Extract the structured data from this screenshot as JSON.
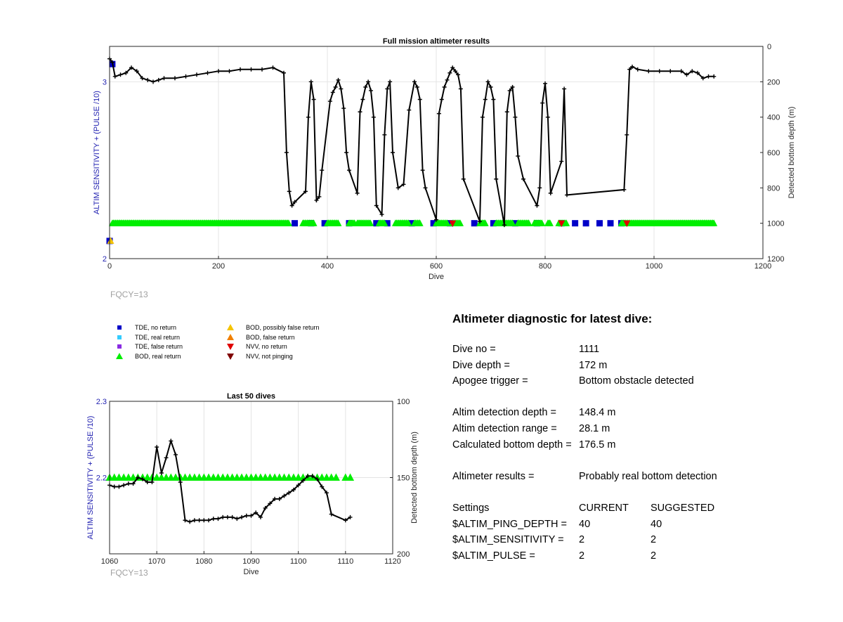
{
  "chart_data": [
    {
      "type": "scatter",
      "title": "Full mission altimeter results",
      "xlabel": "Dive",
      "ylabel_left": "ALTIM SENSITIVITY + (PULSE /10)",
      "ylabel_right": "Detected bottom depth (m)",
      "xlim": [
        0,
        1200
      ],
      "ylim_left": [
        2,
        3.2
      ],
      "ylim_right": [
        1200,
        0
      ],
      "xticks": [
        "0",
        "200",
        "400",
        "600",
        "800",
        "1000",
        "1200"
      ],
      "yticks_left": [
        "2",
        "3"
      ],
      "yticks_right": [
        "0",
        "200",
        "400",
        "600",
        "800",
        "1000",
        "1200"
      ],
      "grid": true,
      "settings_series": [
        {
          "name": "TDE, no return",
          "x": [
            0,
            5,
            340,
            370,
            395,
            440,
            490,
            510,
            555,
            595,
            625,
            670,
            705,
            745,
            785,
            830,
            855,
            875,
            900,
            920,
            940
          ],
          "y": [
            2.1,
            3.1,
            2.2,
            2.2,
            2.2,
            2.2,
            2.2,
            2.2,
            2.2,
            2.2,
            2.2,
            2.2,
            2.2,
            2.2,
            2.2,
            2.2,
            2.2,
            2.2,
            2.2,
            2.2,
            2.2
          ]
        },
        {
          "name": "BOD, real return",
          "x_ranges": [
            [
              5,
              330
            ],
            [
              355,
              375
            ],
            [
              400,
              420
            ],
            [
              440,
              450
            ],
            [
              455,
              480
            ],
            [
              495,
              505
            ],
            [
              525,
              550
            ],
            [
              560,
              570
            ],
            [
              600,
              620
            ],
            [
              630,
              645
            ],
            [
              680,
              690
            ],
            [
              710,
              740
            ],
            [
              750,
              770
            ],
            [
              780,
              795
            ],
            [
              805,
              810
            ],
            [
              825,
              840
            ],
            [
              940,
              1110
            ]
          ],
          "y": 2.2
        },
        {
          "name": "BOD, possibly false return",
          "x": [
            2
          ],
          "y": [
            2.1
          ]
        },
        {
          "name": "NVV, no return",
          "x": [
            630,
            830,
            950
          ],
          "y": [
            2.2,
            2.2,
            2.2
          ]
        }
      ],
      "depth_series": {
        "name": "Detected bottom depth",
        "x": [
          0,
          5,
          10,
          20,
          30,
          40,
          50,
          60,
          70,
          80,
          90,
          100,
          120,
          140,
          160,
          180,
          200,
          220,
          240,
          260,
          280,
          300,
          320,
          325,
          330,
          335,
          340,
          360,
          365,
          370,
          375,
          380,
          385,
          390,
          405,
          410,
          415,
          420,
          425,
          430,
          435,
          440,
          455,
          460,
          465,
          470,
          475,
          480,
          485,
          490,
          500,
          505,
          510,
          515,
          520,
          530,
          540,
          550,
          560,
          565,
          570,
          575,
          580,
          600,
          605,
          610,
          615,
          620,
          625,
          630,
          635,
          640,
          645,
          650,
          680,
          685,
          690,
          695,
          700,
          705,
          710,
          725,
          730,
          735,
          740,
          745,
          750,
          760,
          785,
          790,
          795,
          800,
          805,
          810,
          830,
          835,
          840,
          945,
          950,
          955,
          960,
          970,
          990,
          1010,
          1030,
          1050,
          1060,
          1070,
          1080,
          1090,
          1100,
          1110
        ],
        "y": [
          70,
          90,
          170,
          160,
          150,
          120,
          140,
          180,
          190,
          200,
          190,
          180,
          180,
          170,
          160,
          150,
          140,
          140,
          130,
          130,
          130,
          120,
          150,
          600,
          820,
          900,
          880,
          820,
          400,
          200,
          300,
          870,
          850,
          700,
          310,
          260,
          230,
          190,
          240,
          350,
          600,
          700,
          830,
          370,
          300,
          230,
          200,
          250,
          400,
          900,
          950,
          500,
          240,
          200,
          600,
          800,
          780,
          360,
          200,
          230,
          300,
          700,
          800,
          980,
          380,
          300,
          230,
          190,
          150,
          120,
          140,
          160,
          240,
          750,
          990,
          400,
          300,
          200,
          230,
          300,
          750,
          1010,
          370,
          250,
          230,
          400,
          620,
          750,
          900,
          800,
          320,
          210,
          400,
          830,
          650,
          240,
          840,
          810,
          500,
          130,
          115,
          130,
          140,
          140,
          140,
          140,
          160,
          140,
          150,
          180,
          170,
          170
        ]
      }
    },
    {
      "type": "scatter",
      "title": "Last 50 dives",
      "xlabel": "Dive",
      "ylabel_left": "ALTIM SENSITIVITY + (PULSE /10)",
      "ylabel_right": "Detected bottom depth (m)",
      "xlim": [
        1060,
        1120
      ],
      "ylim_left": [
        2.1,
        2.3
      ],
      "ylim_right": [
        200,
        100
      ],
      "xticks": [
        "1060",
        "1070",
        "1080",
        "1090",
        "1100",
        "1110",
        "1120"
      ],
      "yticks_left": [
        "2.2",
        "2.3"
      ],
      "yticks_right": [
        "100",
        "150",
        "200"
      ],
      "grid": true,
      "settings_series": [
        {
          "name": "BOD, real return",
          "x": [
            1060,
            1061,
            1062,
            1063,
            1064,
            1065,
            1066,
            1067,
            1068,
            1069,
            1070,
            1071,
            1072,
            1073,
            1074,
            1075,
            1076,
            1077,
            1078,
            1079,
            1080,
            1081,
            1082,
            1083,
            1084,
            1085,
            1086,
            1087,
            1088,
            1089,
            1090,
            1091,
            1092,
            1093,
            1094,
            1095,
            1096,
            1097,
            1098,
            1099,
            1100,
            1101,
            1102,
            1103,
            1104,
            1105,
            1106,
            1107,
            1108,
            1110,
            1111
          ],
          "y": 2.2
        }
      ],
      "depth_series": {
        "name": "Detected bottom depth",
        "x": [
          1060,
          1061,
          1062,
          1063,
          1064,
          1065,
          1066,
          1067,
          1068,
          1069,
          1070,
          1071,
          1072,
          1073,
          1074,
          1075,
          1076,
          1077,
          1078,
          1079,
          1080,
          1081,
          1082,
          1083,
          1084,
          1085,
          1086,
          1087,
          1088,
          1089,
          1090,
          1091,
          1092,
          1093,
          1094,
          1095,
          1096,
          1097,
          1098,
          1099,
          1100,
          1101,
          1102,
          1103,
          1104,
          1105,
          1106,
          1107,
          1110,
          1111
        ],
        "y": [
          155,
          156,
          156,
          155,
          154,
          154,
          150,
          151,
          153,
          153,
          130,
          147,
          137,
          126,
          135,
          153,
          178,
          179,
          178,
          178,
          178,
          178,
          177,
          177,
          176,
          176,
          176,
          177,
          176,
          175,
          175,
          173,
          176,
          170,
          167,
          164,
          164,
          162,
          160,
          158,
          155,
          152,
          149,
          149,
          151,
          156,
          160,
          174,
          178,
          176
        ]
      }
    }
  ],
  "top_chart": {
    "fqcy_label": "FQCY=13"
  },
  "bottom_chart": {
    "fqcy_label": "FQCY=13"
  },
  "legend": {
    "items": [
      {
        "label": "TDE, no return",
        "color": "#0000c8",
        "shape": "square"
      },
      {
        "label": "TDE, real return",
        "color": "#33ccff",
        "shape": "square"
      },
      {
        "label": "TDE, false return",
        "color": "#8a2be2",
        "shape": "square"
      },
      {
        "label": "BOD, real return",
        "color": "#00ee00",
        "shape": "triangle-up"
      },
      {
        "label": "BOD, possibly false return",
        "color": "#f5c400",
        "shape": "triangle-up"
      },
      {
        "label": "BOD, false return",
        "color": "#f08000",
        "shape": "triangle-up"
      },
      {
        "label": "NVV, no return",
        "color": "#e00000",
        "shape": "triangle-down"
      },
      {
        "label": "NVV, not pinging",
        "color": "#800000",
        "shape": "triangle-down"
      }
    ]
  },
  "diagnostic": {
    "heading": "Altimeter diagnostic for latest dive:",
    "dive_no_label": "Dive no =",
    "dive_no_value": "1111",
    "dive_depth_label": "Dive depth =",
    "dive_depth_value": "172 m",
    "apogee_label": "Apogee trigger =",
    "apogee_value": "Bottom obstacle detected",
    "altim_det_depth_label": "Altim detection depth =",
    "altim_det_depth_value": "148.4 m",
    "altim_det_range_label": "Altim detection range =",
    "altim_det_range_value": "28.1 m",
    "calc_bottom_label": "Calculated bottom depth =",
    "calc_bottom_value": "176.5 m",
    "results_label": "Altimeter results =",
    "results_value": "Probably real bottom detection",
    "settings_header": "Settings",
    "current_header": "CURRENT",
    "suggested_header": "SUGGESTED",
    "settings": [
      {
        "name": "$ALTIM_PING_DEPTH =",
        "current": "40",
        "suggested": "40"
      },
      {
        "name": "$ALTIM_SENSITIVITY =",
        "current": "2",
        "suggested": "2"
      },
      {
        "name": "$ALTIM_PULSE =",
        "current": "2",
        "suggested": "2"
      }
    ]
  }
}
